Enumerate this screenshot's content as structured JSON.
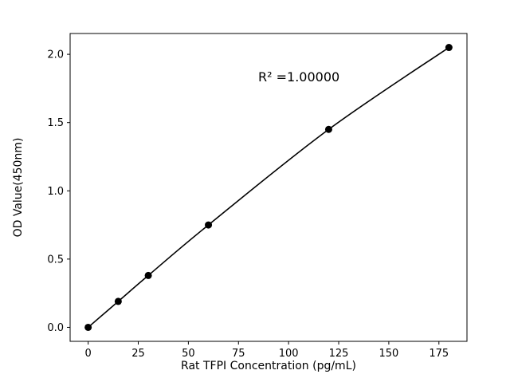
{
  "figure": {
    "background": "#ffffff"
  },
  "chart_data": {
    "type": "line",
    "title": "",
    "xlabel": "Rat TFPI Concentration (pg/mL)",
    "ylabel": "OD Value(450nm)",
    "annotation": "R² =1.00000",
    "x": [
      0,
      15,
      30,
      60,
      120,
      180
    ],
    "y": [
      0.0,
      0.19,
      0.38,
      0.75,
      1.45,
      2.05
    ],
    "xlim": [
      -9,
      189
    ],
    "ylim": [
      -0.1025,
      2.1525
    ],
    "xticks": [
      0,
      25,
      50,
      75,
      100,
      125,
      150,
      175
    ],
    "yticks": [
      0.0,
      0.5,
      1.0,
      1.5,
      2.0
    ],
    "line_color": "#000000",
    "marker_color": "#000000",
    "marker_radius": 4.5,
    "grid": false,
    "legend": null
  }
}
